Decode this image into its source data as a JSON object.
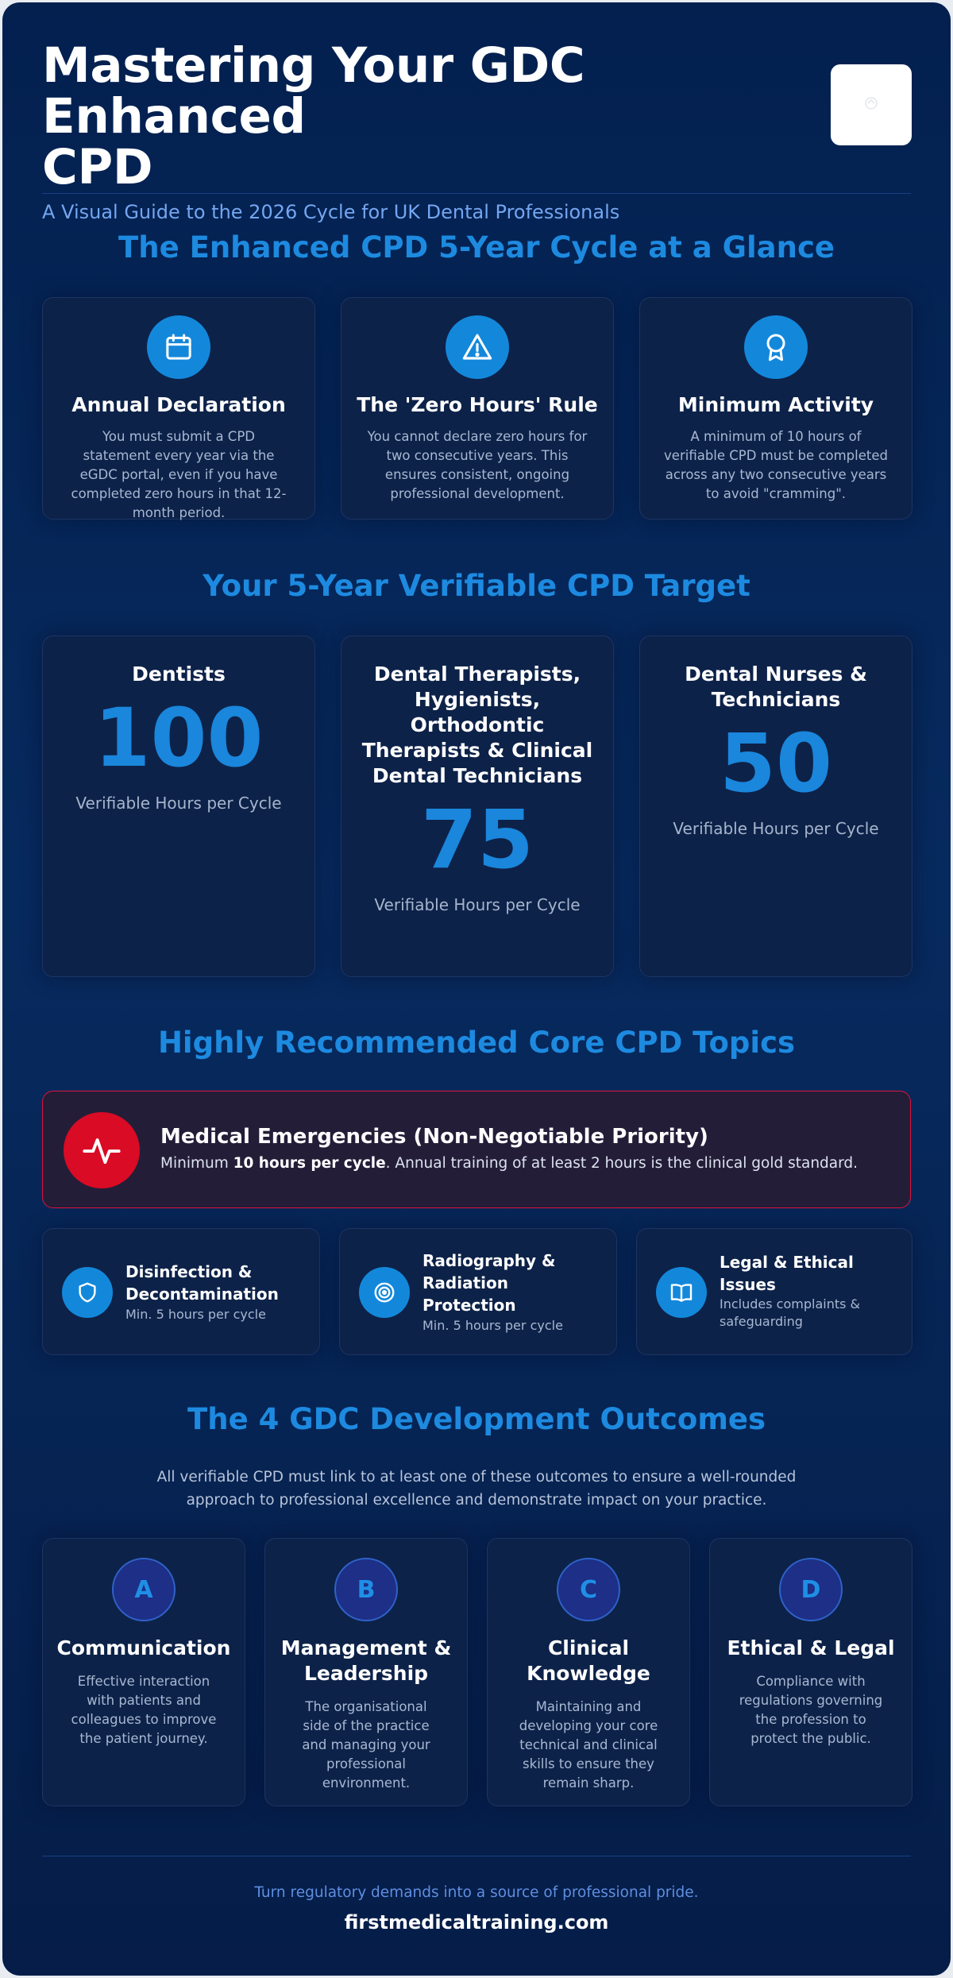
{
  "header": {
    "title_line1": "Mastering Your GDC Enhanced",
    "title_line2": "CPD",
    "subtitle": "A Visual Guide to the 2026 Cycle for UK Dental Professionals"
  },
  "cycle": {
    "title": "The Enhanced CPD 5-Year Cycle at a Glance",
    "cards": [
      {
        "icon": "calendar-icon",
        "title": "Annual Declaration",
        "text": "You must submit a CPD statement every year via the eGDC portal, even if you have completed zero hours in that 12-month period."
      },
      {
        "icon": "warning-icon",
        "title": "The 'Zero Hours' Rule",
        "text": "You cannot declare zero hours for two consecutive years. This ensures consistent, ongoing professional development."
      },
      {
        "icon": "award-icon",
        "title": "Minimum Activity",
        "text": "A minimum of 10 hours of verifiable CPD must be completed across any two consecutive years to avoid \"cramming\"."
      }
    ]
  },
  "targets": {
    "title": "Your 5-Year Verifiable CPD Target",
    "items": [
      {
        "role": "Dentists",
        "hours": "100",
        "label": "Verifiable Hours per Cycle"
      },
      {
        "role": "Dental Therapists, Hygienists, Orthodontic Therapists & Clinical Dental Technicians",
        "hours": "75",
        "label": "Verifiable Hours per Cycle"
      },
      {
        "role": "Dental Nurses & Technicians",
        "hours": "50",
        "label": "Verifiable Hours per Cycle"
      }
    ]
  },
  "topics": {
    "title": "Highly Recommended Core CPD Topics",
    "emergency": {
      "icon": "heartbeat-icon",
      "title": "Medical Emergencies (Non-Negotiable Priority)",
      "desc_pre": "Minimum ",
      "desc_bold": "10 hours per cycle",
      "desc_post": ". Annual training of at least 2 hours is the clinical gold standard."
    },
    "items": [
      {
        "icon": "shield-icon",
        "title": "Disinfection & Decontamination",
        "sub": "Min. 5 hours per cycle"
      },
      {
        "icon": "radiation-target-icon",
        "title": "Radiography & Radiation Protection",
        "sub": "Min. 5 hours per cycle"
      },
      {
        "icon": "book-icon",
        "title": "Legal & Ethical Issues",
        "sub": "Includes complaints & safeguarding"
      }
    ]
  },
  "outcomes": {
    "title": "The 4 GDC Development Outcomes",
    "intro": "All verifiable CPD must link to at least one of these outcomes to ensure a well-rounded approach to professional excellence and demonstrate impact on your practice.",
    "items": [
      {
        "letter": "A",
        "title": "Communication",
        "text": "Effective interaction with patients and colleagues to improve the patient journey."
      },
      {
        "letter": "B",
        "title": "Management & Leadership",
        "text": "The organisational side of the practice and managing your professional environment."
      },
      {
        "letter": "C",
        "title": "Clinical Knowledge",
        "text": "Maintaining and developing your core technical and clinical skills to ensure they remain sharp."
      },
      {
        "letter": "D",
        "title": "Ethical & Legal",
        "text": "Compliance with regulations governing the profession to protect the public."
      }
    ]
  },
  "footer": {
    "tagline": "Turn regulatory demands into a source of professional pride.",
    "site": "firstmedicaltraining.com"
  },
  "colors": {
    "accent": "#1d8ae0",
    "background": "#03204f",
    "emergency": "#d90b25"
  }
}
